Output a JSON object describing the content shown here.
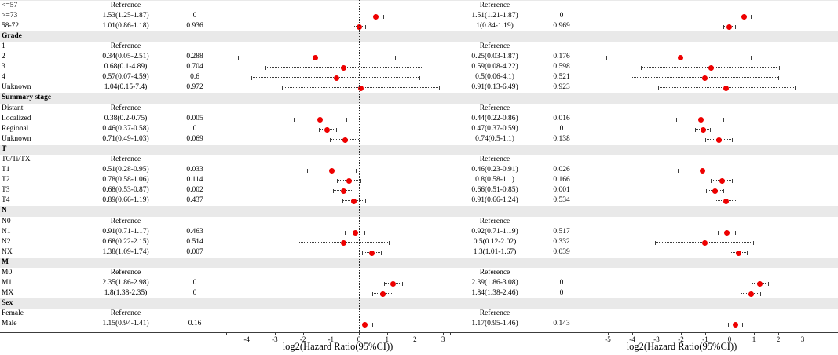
{
  "colors": {
    "marker": "#ee0000",
    "section_band": "#e9e9e9",
    "whisker": "#3c3c3c"
  },
  "chart_data": {
    "type": "scatter",
    "variant": "forest-plot",
    "panels": [
      {
        "xlabel": "log2(Hazard Ratio(95%CI))",
        "xticks": [
          -4,
          -3,
          -2,
          -1,
          0,
          1,
          2,
          3
        ],
        "xlim": [
          -4.7,
          3.8
        ],
        "refline_x": 0
      },
      {
        "xlabel": "log2(Hazard Ratio(95%CI))",
        "xticks": [
          -5,
          -4,
          -3,
          -2,
          -1,
          0,
          1,
          2,
          3
        ],
        "xlim": [
          -5.5,
          4.4
        ],
        "refline_x": 0
      }
    ],
    "rows": [
      {
        "label": "Age",
        "kind": "header"
      },
      {
        "label": "<=57",
        "kind": "item",
        "m1": {
          "ci": "Reference"
        },
        "m2": {
          "ci": "Reference"
        }
      },
      {
        "label": ">=73",
        "kind": "item",
        "m1": {
          "ci": "1.53(1.25-1.87)",
          "p": "0",
          "hr": 1.53,
          "lo": 1.25,
          "hi": 1.87
        },
        "m2": {
          "ci": "1.51(1.21-1.87)",
          "p": "0",
          "hr": 1.51,
          "lo": 1.21,
          "hi": 1.87
        }
      },
      {
        "label": "58-72",
        "kind": "item",
        "m1": {
          "ci": "1.01(0.86-1.18)",
          "p": "0.936",
          "hr": 1.01,
          "lo": 0.86,
          "hi": 1.18
        },
        "m2": {
          "ci": "1(0.84-1.19)",
          "p": "0.969",
          "hr": 1.0,
          "lo": 0.84,
          "hi": 1.19
        }
      },
      {
        "label": "Grade",
        "kind": "header"
      },
      {
        "label": "1",
        "kind": "item",
        "m1": {
          "ci": "Reference"
        },
        "m2": {
          "ci": "Reference"
        }
      },
      {
        "label": "2",
        "kind": "item",
        "m1": {
          "ci": "0.34(0.05-2.51)",
          "p": "0.288",
          "hr": 0.34,
          "lo": 0.05,
          "hi": 2.51
        },
        "m2": {
          "ci": "0.25(0.03-1.87)",
          "p": "0.176",
          "hr": 0.25,
          "lo": 0.03,
          "hi": 1.87
        }
      },
      {
        "label": "3",
        "kind": "item",
        "m1": {
          "ci": "0.68(0.1-4.89)",
          "p": "0.704",
          "hr": 0.68,
          "lo": 0.1,
          "hi": 4.89
        },
        "m2": {
          "ci": "0.59(0.08-4.22)",
          "p": "0.598",
          "hr": 0.59,
          "lo": 0.08,
          "hi": 4.22
        }
      },
      {
        "label": "4",
        "kind": "item",
        "m1": {
          "ci": "0.57(0.07-4.59)",
          "p": "0.6",
          "hr": 0.57,
          "lo": 0.07,
          "hi": 4.59
        },
        "m2": {
          "ci": "0.5(0.06-4.1)",
          "p": "0.521",
          "hr": 0.5,
          "lo": 0.06,
          "hi": 4.1
        }
      },
      {
        "label": "Unknown",
        "kind": "item",
        "m1": {
          "ci": "1.04(0.15-7.4)",
          "p": "0.972",
          "hr": 1.04,
          "lo": 0.15,
          "hi": 7.4
        },
        "m2": {
          "ci": "0.91(0.13-6.49)",
          "p": "0.923",
          "hr": 0.91,
          "lo": 0.13,
          "hi": 6.49
        }
      },
      {
        "label": "Summary stage",
        "kind": "header"
      },
      {
        "label": "Distant",
        "kind": "item",
        "m1": {
          "ci": "Reference"
        },
        "m2": {
          "ci": "Reference"
        }
      },
      {
        "label": "Localized",
        "kind": "item",
        "m1": {
          "ci": "0.38(0.2-0.75)",
          "p": "0.005",
          "hr": 0.38,
          "lo": 0.2,
          "hi": 0.75
        },
        "m2": {
          "ci": "0.44(0.22-0.86)",
          "p": "0.016",
          "hr": 0.44,
          "lo": 0.22,
          "hi": 0.86
        }
      },
      {
        "label": "Regional",
        "kind": "item",
        "m1": {
          "ci": "0.46(0.37-0.58)",
          "p": "0",
          "hr": 0.46,
          "lo": 0.37,
          "hi": 0.58
        },
        "m2": {
          "ci": "0.47(0.37-0.59)",
          "p": "0",
          "hr": 0.47,
          "lo": 0.37,
          "hi": 0.59
        }
      },
      {
        "label": "Unknown",
        "kind": "item",
        "m1": {
          "ci": "0.71(0.49-1.03)",
          "p": "0.069",
          "hr": 0.71,
          "lo": 0.49,
          "hi": 1.03
        },
        "m2": {
          "ci": "0.74(0.5-1.1)",
          "p": "0.138",
          "hr": 0.74,
          "lo": 0.5,
          "hi": 1.1
        }
      },
      {
        "label": "T",
        "kind": "header"
      },
      {
        "label": "T0/Ti/TX",
        "kind": "item",
        "m1": {
          "ci": "Reference"
        },
        "m2": {
          "ci": "Reference"
        }
      },
      {
        "label": "T1",
        "kind": "item",
        "m1": {
          "ci": "0.51(0.28-0.95)",
          "p": "0.033",
          "hr": 0.51,
          "lo": 0.28,
          "hi": 0.95
        },
        "m2": {
          "ci": "0.46(0.23-0.91)",
          "p": "0.026",
          "hr": 0.46,
          "lo": 0.23,
          "hi": 0.91
        }
      },
      {
        "label": "T2",
        "kind": "item",
        "m1": {
          "ci": "0.78(0.58-1.06)",
          "p": "0.114",
          "hr": 0.78,
          "lo": 0.58,
          "hi": 1.06
        },
        "m2": {
          "ci": "0.8(0.58-1.1)",
          "p": "0.166",
          "hr": 0.8,
          "lo": 0.58,
          "hi": 1.1
        }
      },
      {
        "label": "T3",
        "kind": "item",
        "m1": {
          "ci": "0.68(0.53-0.87)",
          "p": "0.002",
          "hr": 0.68,
          "lo": 0.53,
          "hi": 0.87
        },
        "m2": {
          "ci": "0.66(0.51-0.85)",
          "p": "0.001",
          "hr": 0.66,
          "lo": 0.51,
          "hi": 0.85
        }
      },
      {
        "label": "T4",
        "kind": "item",
        "m1": {
          "ci": "0.89(0.66-1.19)",
          "p": "0.437",
          "hr": 0.89,
          "lo": 0.66,
          "hi": 1.19
        },
        "m2": {
          "ci": "0.91(0.66-1.24)",
          "p": "0.534",
          "hr": 0.91,
          "lo": 0.66,
          "hi": 1.24
        }
      },
      {
        "label": "N",
        "kind": "header"
      },
      {
        "label": "N0",
        "kind": "item",
        "m1": {
          "ci": "Reference"
        },
        "m2": {
          "ci": "Reference"
        }
      },
      {
        "label": "N1",
        "kind": "item",
        "m1": {
          "ci": "0.91(0.71-1.17)",
          "p": "0.463",
          "hr": 0.91,
          "lo": 0.71,
          "hi": 1.17
        },
        "m2": {
          "ci": "0.92(0.71-1.19)",
          "p": "0.517",
          "hr": 0.92,
          "lo": 0.71,
          "hi": 1.19
        }
      },
      {
        "label": "N2",
        "kind": "item",
        "m1": {
          "ci": "0.68(0.22-2.15)",
          "p": "0.514",
          "hr": 0.68,
          "lo": 0.22,
          "hi": 2.15
        },
        "m2": {
          "ci": "0.5(0.12-2.02)",
          "p": "0.332",
          "hr": 0.5,
          "lo": 0.12,
          "hi": 2.02
        }
      },
      {
        "label": "NX",
        "kind": "item",
        "m1": {
          "ci": "1.38(1.09-1.74)",
          "p": "0.007",
          "hr": 1.38,
          "lo": 1.09,
          "hi": 1.74
        },
        "m2": {
          "ci": "1.3(1.01-1.67)",
          "p": "0.039",
          "hr": 1.3,
          "lo": 1.01,
          "hi": 1.67
        }
      },
      {
        "label": "M",
        "kind": "header"
      },
      {
        "label": "M0",
        "kind": "item",
        "m1": {
          "ci": "Reference"
        },
        "m2": {
          "ci": "Reference"
        }
      },
      {
        "label": "M1",
        "kind": "item",
        "m1": {
          "ci": "2.35(1.86-2.98)",
          "p": "0",
          "hr": 2.35,
          "lo": 1.86,
          "hi": 2.98
        },
        "m2": {
          "ci": "2.39(1.86-3.08)",
          "p": "0",
          "hr": 2.39,
          "lo": 1.86,
          "hi": 3.08
        }
      },
      {
        "label": "MX",
        "kind": "item",
        "m1": {
          "ci": "1.8(1.38-2.35)",
          "p": "0",
          "hr": 1.8,
          "lo": 1.38,
          "hi": 2.35
        },
        "m2": {
          "ci": "1.84(1.38-2.46)",
          "p": "0",
          "hr": 1.84,
          "lo": 1.38,
          "hi": 2.46
        }
      },
      {
        "label": "Sex",
        "kind": "header"
      },
      {
        "label": "Female",
        "kind": "item",
        "m1": {
          "ci": "Reference"
        },
        "m2": {
          "ci": "Reference"
        }
      },
      {
        "label": "Male",
        "kind": "item",
        "m1": {
          "ci": "1.15(0.94-1.41)",
          "p": "0.16",
          "hr": 1.15,
          "lo": 0.94,
          "hi": 1.41
        },
        "m2": {
          "ci": "1.17(0.95-1.46)",
          "p": "0.143",
          "hr": 1.17,
          "lo": 0.95,
          "hi": 1.46
        }
      }
    ]
  }
}
